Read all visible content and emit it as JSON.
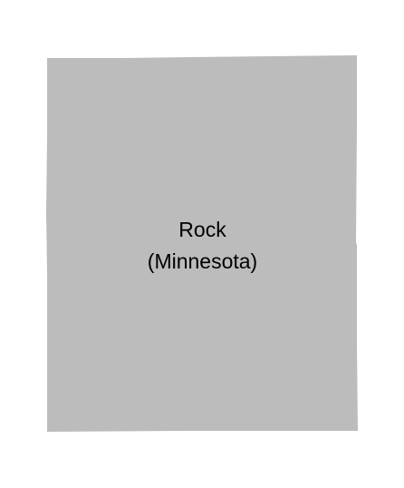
{
  "map": {
    "county": {
      "name": "Rock",
      "state": "(Minnesota)",
      "fill_color": "#bcbcbc"
    },
    "background_color": "#ffffff"
  }
}
